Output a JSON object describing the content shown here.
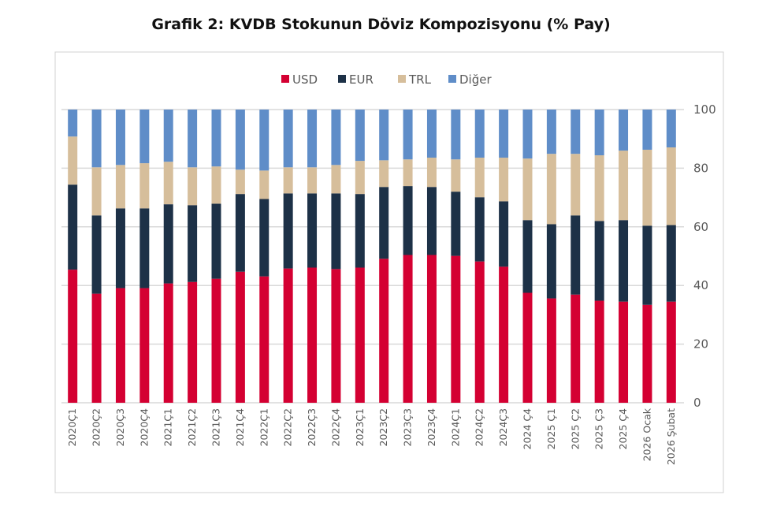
{
  "chart_data": {
    "type": "bar",
    "stacked": true,
    "title": "Grafik 2: KVDB Stokunun Döviz Kompozisyonu (% Pay)",
    "xlabel": "",
    "ylabel": "",
    "ylim": [
      0,
      100
    ],
    "yticks": [
      "0",
      "20",
      "40",
      "60",
      "80",
      "100"
    ],
    "grid": true,
    "legend_position": "top",
    "categories": [
      "2020Ç1",
      "2020Ç2",
      "2020Ç3",
      "2020Ç4",
      "2021Ç1",
      "2021Ç2",
      "2021Ç3",
      "2021Ç4",
      "2022Ç1",
      "2022Ç2",
      "2022Ç3",
      "2022Ç4",
      "2023Ç1",
      "2023Ç2",
      "2023Ç3",
      "2023Ç4",
      "2024Ç1",
      "2024Ç2",
      "2024Ç3",
      "2024 Ç4",
      "2025 Ç1",
      "2025 Ç2",
      "2025 Ç3",
      "2025 Ç4",
      "2026 Ocak",
      "2026 Şubat"
    ],
    "series": [
      {
        "name": "USD",
        "color": "#d40032",
        "values": [
          45.4,
          37.2,
          39.1,
          39.1,
          40.7,
          41.2,
          42.3,
          44.7,
          43.1,
          45.8,
          46.1,
          45.6,
          46.1,
          49.1,
          50.4,
          50.4,
          50.1,
          48.2,
          46.4,
          37.5,
          35.6,
          36.9,
          34.8,
          34.5,
          33.4,
          34.5
        ]
      },
      {
        "name": "EUR",
        "color": "#1d3147",
        "values": [
          29.0,
          26.7,
          27.2,
          27.2,
          27.0,
          26.2,
          25.6,
          26.5,
          26.4,
          25.6,
          25.3,
          25.8,
          25.1,
          24.5,
          23.5,
          23.2,
          21.9,
          21.9,
          22.3,
          24.8,
          25.3,
          27.0,
          27.2,
          27.8,
          27.0,
          26.1
        ]
      },
      {
        "name": "TRL",
        "color": "#d6be9b",
        "values": [
          16.4,
          16.4,
          14.8,
          15.4,
          14.5,
          12.9,
          12.7,
          8.3,
          9.7,
          8.9,
          8.9,
          9.7,
          11.3,
          9.1,
          9.1,
          10.0,
          11.0,
          13.5,
          14.9,
          21.0,
          24.0,
          21.0,
          22.4,
          23.7,
          25.9,
          26.5
        ]
      },
      {
        "name": "Diğer",
        "color": "#5f8dc8",
        "values": [
          9.2,
          19.7,
          18.9,
          18.3,
          17.8,
          19.7,
          19.4,
          20.5,
          20.8,
          19.7,
          19.7,
          18.9,
          17.5,
          17.3,
          17.0,
          16.4,
          17.0,
          16.4,
          16.4,
          16.7,
          15.1,
          15.1,
          15.6,
          14.0,
          13.7,
          12.9
        ]
      }
    ]
  }
}
